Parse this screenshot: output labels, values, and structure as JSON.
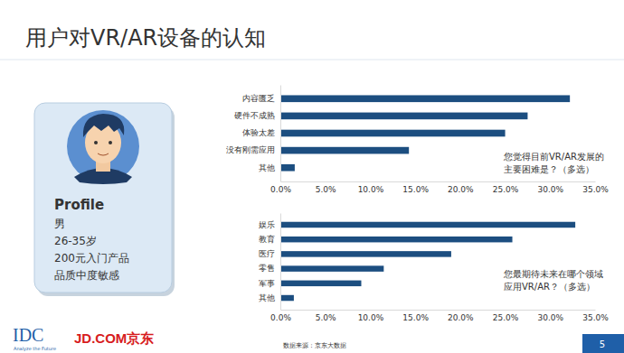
{
  "page": {
    "title": "用户对VR/AR设备的认知",
    "profile": {
      "heading": "Profile",
      "lines": [
        "男",
        "26-35岁",
        "200元入门产品",
        "品质中度敏感"
      ]
    },
    "logos": {
      "idc": "IDC",
      "idc_tagline": "Analyze the Future",
      "jd": "JD.COM",
      "jd_cn": "京东"
    },
    "source": "数据来源：京东大数据",
    "page_number": "5"
  },
  "chart_data": [
    {
      "type": "bar",
      "orientation": "horizontal",
      "categories": [
        "内容匮乏",
        "硬件不成熟",
        "体验太差",
        "没有刚需应用",
        "其他"
      ],
      "values": [
        32.2,
        27.5,
        25.0,
        14.3,
        1.6
      ],
      "color": "#1c4e80",
      "xlim": [
        0,
        35
      ],
      "xticks": [
        {
          "value": 0,
          "label": "0.0%"
        },
        {
          "value": 5,
          "label": "5.0%"
        },
        {
          "value": 10,
          "label": "10.0%"
        },
        {
          "value": 15,
          "label": "15.0%"
        },
        {
          "value": 20,
          "label": "20.0%"
        },
        {
          "value": 25,
          "label": "25.0%"
        },
        {
          "value": 30,
          "label": "30.0%"
        },
        {
          "value": 35,
          "label": "35.0%"
        }
      ],
      "annotations": [
        "您觉得目前VR/AR发展的",
        "主要困难是？（多选）"
      ]
    },
    {
      "type": "bar",
      "orientation": "horizontal",
      "categories": [
        "娱乐",
        "教育",
        "医疗",
        "零售",
        "军事",
        "其他"
      ],
      "values": [
        32.8,
        25.8,
        19.0,
        11.5,
        9.0,
        1.5
      ],
      "color": "#1c4e80",
      "xlim": [
        0,
        35
      ],
      "xticks": [
        {
          "value": 0,
          "label": "0.0%"
        },
        {
          "value": 5,
          "label": "5.0%"
        },
        {
          "value": 10,
          "label": "10.0%"
        },
        {
          "value": 15,
          "label": "15.0%"
        },
        {
          "value": 20,
          "label": "20.0%"
        },
        {
          "value": 25,
          "label": "25.0%"
        },
        {
          "value": 30,
          "label": "30.0%"
        },
        {
          "value": 35,
          "label": "35.0%"
        }
      ],
      "annotations": [
        "您最期待未来在哪个领域",
        "应用VR/AR？（多选）"
      ]
    }
  ]
}
